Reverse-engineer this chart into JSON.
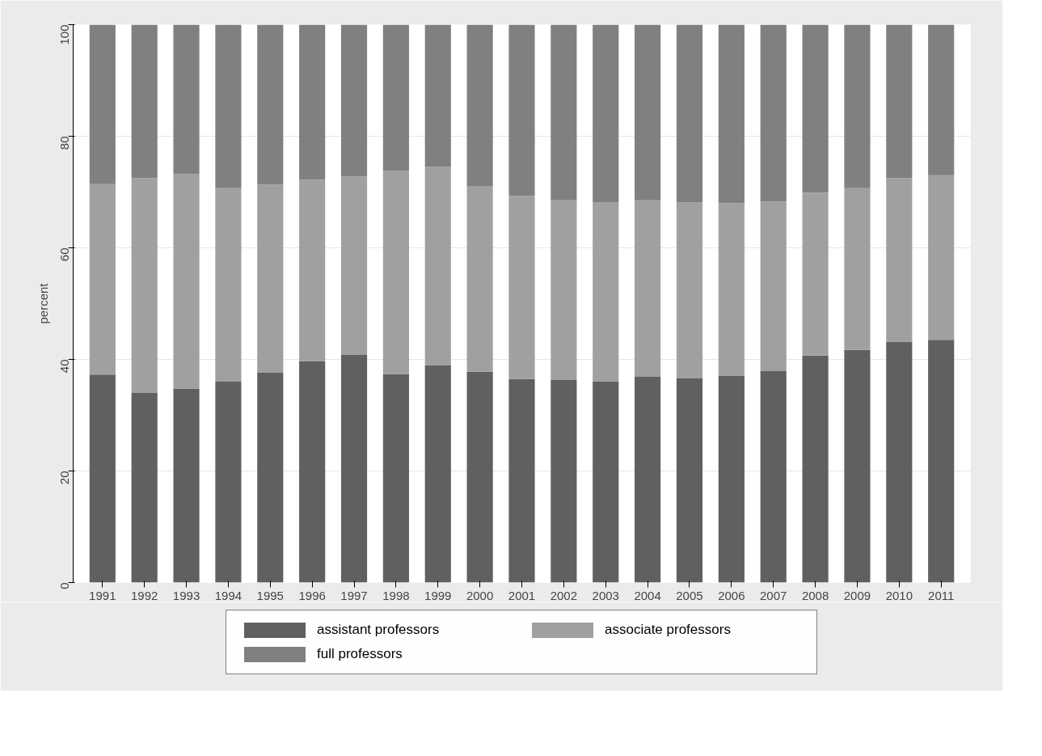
{
  "chart_data": {
    "type": "bar",
    "stacked": true,
    "ylabel": "percent",
    "categories": [
      "1991",
      "1992",
      "1993",
      "1994",
      "1995",
      "1996",
      "1997",
      "1998",
      "1999",
      "2000",
      "2001",
      "2002",
      "2003",
      "2004",
      "2005",
      "2006",
      "2007",
      "2008",
      "2009",
      "2010",
      "2011"
    ],
    "series": [
      {
        "name": "assistant professors",
        "color": "#606060",
        "values": [
          37.3,
          34.0,
          34.8,
          36.0,
          37.6,
          39.7,
          40.8,
          37.4,
          39.0,
          37.8,
          36.5,
          36.3,
          36.1,
          36.9,
          36.6,
          37.1,
          37.9,
          40.7,
          41.7,
          43.2,
          43.5
        ]
      },
      {
        "name": "associate professors",
        "color": "#a0a0a0",
        "values": [
          34.1,
          38.5,
          38.4,
          34.8,
          33.7,
          32.5,
          32.0,
          36.4,
          35.5,
          33.3,
          32.8,
          32.2,
          32.1,
          31.6,
          31.5,
          30.9,
          30.4,
          29.2,
          29.0,
          29.3,
          29.5
        ]
      },
      {
        "name": "full professors",
        "color": "#808080",
        "values": [
          28.6,
          27.5,
          26.8,
          29.2,
          28.7,
          27.8,
          27.2,
          26.2,
          25.5,
          28.9,
          30.7,
          31.5,
          31.8,
          31.5,
          31.9,
          32.0,
          31.7,
          30.1,
          29.3,
          27.5,
          27.0
        ]
      }
    ],
    "ylim": [
      0,
      100
    ],
    "yticks": [
      0,
      20,
      40,
      60,
      80,
      100
    ],
    "grid": "y",
    "legend": "bottom"
  }
}
